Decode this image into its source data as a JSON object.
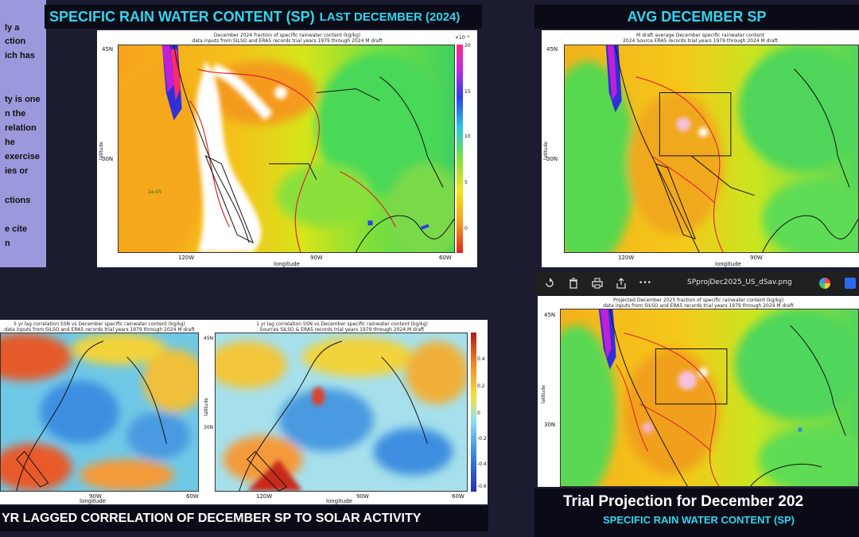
{
  "notes": {
    "lines": [
      "ly a",
      "ction",
      "ich has",
      "",
      "ty is one",
      "n the",
      "relation",
      "he",
      "exercise",
      "ies or",
      "",
      "ctions",
      "",
      "e cite",
      "n"
    ]
  },
  "headings": {
    "top_left_main": "SPECIFIC RAIN WATER CONTENT (SP)",
    "top_left_small": "LAST DECEMBER (2024)",
    "top_right": "AVG DECEMBER SP",
    "bottom_left": "YR LAGGED CORRELATION OF DECEMBER SP TO SOLAR ACTIVITY",
    "bottom_right_main": "Trial Projection for December 202",
    "bottom_right_sub": "SPECIFIC RAIN WATER CONTENT (SP)"
  },
  "viewer": {
    "filename": "SPprojDec2025_US_dSav.png",
    "icons": [
      "rotate-icon",
      "delete-icon",
      "print-icon",
      "share-icon",
      "more-icon"
    ],
    "more_glyph": "•••"
  },
  "maps": {
    "dec2024": {
      "title1": "December 2024 fraction of specific rainwater content (kg/kg)",
      "title2": "data inputs from SILSO and ERA5 records   trial years 1979 through 2024   M draft",
      "lat_labels": [
        "45N",
        "30N"
      ],
      "lon_labels": [
        "120W",
        "90W",
        "60W"
      ],
      "xlabel": "longitude",
      "ylabel": "latitude",
      "annotation": "1e-05",
      "colorbar_exponent": "×10⁻⁶",
      "colorbar_ticks": [
        "20",
        "15",
        "10",
        "5",
        "0"
      ]
    },
    "avg": {
      "title1": "M draft average December specific rainwater content",
      "title2": "2024  Source ERA5 records   trial years 1979 through 2024   M draft",
      "lat_labels": [
        "45N",
        "30N"
      ],
      "lon_labels": [
        "120W",
        "90W"
      ],
      "xlabel": "longitude",
      "ylabel": "latitude"
    },
    "corr1": {
      "title1": "5 yr lag correlation SSN vs December specific rainwater content (kg/kg)",
      "title2": "data inputs from SILSO and ERA5 records   trial years 1979 through 2024   M draft",
      "lon_labels": [
        "90W",
        "60W"
      ],
      "xlabel": "longitude"
    },
    "corr2": {
      "title1": "1 yr lag correlation SSN vs December specific rainwater content (kg/kg)",
      "title2": "Sources SILSO & ERA5 records   trial years 1979 through 2024   M draft",
      "lat_labels": [
        "45N",
        "30N"
      ],
      "lon_labels": [
        "120W",
        "90W",
        "60W"
      ],
      "xlabel": "longitude",
      "ylabel": "latitude",
      "colorbar_ticks": [
        "0.4",
        "0.2",
        "0",
        "-0.2",
        "-0.4",
        "-0.6"
      ]
    },
    "proj": {
      "title1": "Projected December 2025 fraction of specific rainwater content (kg/kg)",
      "title2": "data inputs from SILSO and ERA5 records   trial years 1979 through 2024   M draft",
      "lat_labels": [
        "45N",
        "30N"
      ],
      "ylabel": "latitude"
    }
  },
  "colors": {
    "heading_cyan": "#2fd6ee",
    "heading_bar": "#0b0b18",
    "notes_panel": "#9c98dc"
  }
}
